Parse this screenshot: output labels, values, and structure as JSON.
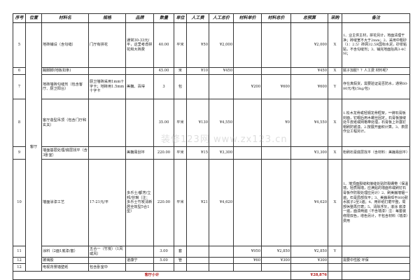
{
  "headers": [
    "序号",
    "位置",
    "材料名",
    "规格",
    "品牌",
    "数量",
    "单位",
    "人工费",
    "人工总价",
    "材料单价",
    "材料总价",
    "总预算",
    "采购",
    "备注"
  ],
  "location": "客厅",
  "rows": [
    {
      "no": "5",
      "name": "地砖铺设（含勾缝）",
      "spec": "门厅有拼花",
      "brand": "通常30-33元/平，这里考虑拼花和大砖费",
      "qty": "40.00",
      "unit": "平米",
      "labor": "¥50",
      "labor_total": "¥2,000",
      "mat_unit": "",
      "mat_total": "",
      "total": "¥2,000",
      "buy": "X",
      "note": "1、业主供主材，拼花另计，地面清理干净；砖缝宽不大于2mm；2、采用中粗砂（1：2.5）砖屑32.5R国标水泥，砂浆粘贴，不含勾缝剂；3、铺完地面抬高3-4CM；"
    },
    {
      "no": "6",
      "name": "踢脚脚(地板扣条)",
      "spec": "",
      "brand": "",
      "qty": "45.00",
      "unit": "米",
      "labor": "¥10",
      "labor_total": "¥450",
      "mat_unit": "",
      "mat_total": "",
      "total": "¥450",
      "buy": "X",
      "note": "腻子加胶？？人工费 材料呢？"
    },
    {
      "no": "7",
      "name": "地砖墙砖勾缝剂（包含客厅、厨卫阳台）",
      "spec": "厨卫墙砖采用1mm十字卡；地砖用1.5mm十字卡",
      "brand": "美巍、百得",
      "qty": "3",
      "unit": "包",
      "labor": "",
      "labor_total": "",
      "mat_unit": "¥200",
      "mat_total": "¥600",
      "total": "¥600",
      "buy": "Y",
      "note": "存在真假货，需要验证是否防水，通常60-80元/包(5kg/包)"
    },
    {
      "no": "8",
      "name": "客厅造型吊顶（包含门厅和玄关）",
      "spec": "",
      "brand": "",
      "qty": "35.00",
      "unit": "平米",
      "labor": "¥130",
      "labor_total": "¥4,550",
      "mat_unit": "",
      "mat_total": "¥0",
      "total": "¥4,550",
      "buy": "X",
      "note": "1.松木龙骨或轻钢龙骨框架，**牌石膏板封面，钉眼后用木螺丝固定，石膏板接缝处牛皮纸或网格带处理，石膏板上补露钉帽刷防锈漆。2.按展开面积计算。3、表层作业工程另计。"
    },
    {
      "no": "9",
      "name": "墙面基层处理/底层找平（含3卧室）",
      "spec": "",
      "brand": "美巍易刮平",
      "qty": "220.00",
      "unit": "平米",
      "labor": "¥15",
      "labor_total": "¥3,300",
      "mat_unit": "",
      "mat_total": "",
      "total": "¥3,300",
      "buy": "X",
      "note": "粉刷石膏底层找平（含材料：美巍易刮平）"
    },
    {
      "no": "10",
      "name": "墙面涂漆工艺",
      "spec": "17-21元/平",
      "brand": "多乐士/都芳/立邦/芬琳（注：多乐士竹炭清新居全效型5合1型）",
      "qty": "220.00",
      "unit": "平米",
      "labor": "¥21",
      "labor_total": "¥4,620",
      "mat_unit": "",
      "mat_total": "",
      "total": "¥4,620",
      "buy": "X",
      "note": "1、墙顶面裂缝和接缝处贴防裂绷带（保温墙，轻质隔墙，应满贴的墙面布或刷钉石膏板作防裂处理应另计）2、刷美巍墙锢一遍，石膏局部找平；3、美巍易呱平800耐水腻子2至3遍；4、用砂纸打磨平整，局部休整再打磨；5、清除浮灰，滚涂 底漆一遍，面漆两遍（不含墙漆）注：每套装修限双色，增色另计，不包含材料（墙漆）费用"
    },
    {
      "no": "11",
      "name": "涂料（2面1底漆/套）",
      "spec": "五合一（竹炭）（1风或风）",
      "brand": "",
      "qty": "3.00",
      "unit": "套",
      "labor": "",
      "labor_total": "",
      "mat_unit": "¥950",
      "mat_total": "¥2,850",
      "total": "¥2,850",
      "buy": "Y",
      "note": ""
    },
    {
      "no": "12",
      "name": "玻璃胶",
      "spec": "",
      "brand": "道康宁",
      "qty": "5.00",
      "unit": "管",
      "labor": "",
      "labor_total": "",
      "mat_unit": "¥60",
      "mat_total": "¥300",
      "total": "¥300",
      "buy": "",
      "note": "需要中性胶 环保"
    },
    {
      "no": "12",
      "name": "电视背景墙壁纸",
      "spec": "包含卧室中",
      "brand": "",
      "qty": "",
      "unit": "",
      "labor": "",
      "labor_total": "",
      "mat_unit": "",
      "mat_total": "",
      "total": "",
      "buy": "",
      "note": ""
    }
  ],
  "subtotal": {
    "label": "客厅小计",
    "total": "¥28,876"
  },
  "watermark": "装修123网 www.zx123.cn"
}
